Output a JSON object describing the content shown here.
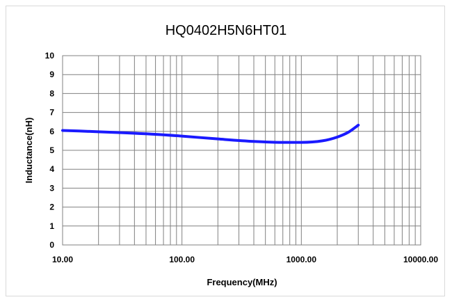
{
  "chart_data": {
    "type": "line",
    "title": "HQ0402H5N6HT01",
    "xlabel": "Frequency(MHz)",
    "ylabel": "Inductance(nH)",
    "x_scale": "log",
    "xlim": [
      10,
      10000
    ],
    "ylim": [
      0,
      10
    ],
    "x_tick_labels": [
      "10.00",
      "100.00",
      "1000.00",
      "10000.00"
    ],
    "y_tick_labels": [
      "0",
      "1",
      "2",
      "3",
      "4",
      "5",
      "6",
      "7",
      "8",
      "9",
      "10"
    ],
    "grid": true,
    "legend": "none",
    "series": [
      {
        "color": "#1a1aff",
        "x": [
          10,
          20,
          40,
          70,
          100,
          200,
          400,
          700,
          1000,
          1500,
          2000,
          2500,
          3000
        ],
        "y": [
          6.05,
          5.98,
          5.9,
          5.82,
          5.75,
          5.6,
          5.47,
          5.42,
          5.42,
          5.5,
          5.7,
          5.97,
          6.33
        ]
      }
    ]
  }
}
